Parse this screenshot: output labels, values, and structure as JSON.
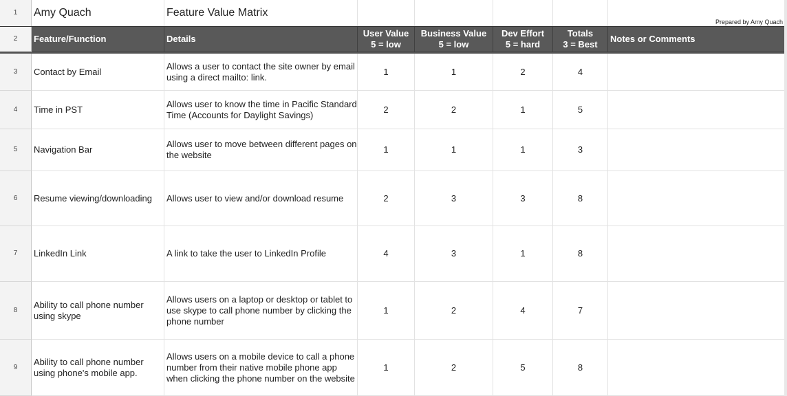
{
  "title_row": {
    "num": "1",
    "name": "Amy Quach",
    "title": "Feature Value Matrix",
    "prepared": "Prepared by Amy Quach"
  },
  "header": {
    "num": "2",
    "feature": "Feature/Function",
    "details": "Details",
    "user_value": [
      "User Value",
      "5 = low"
    ],
    "business_value": [
      "Business Value",
      "5 = low"
    ],
    "dev_effort": [
      "Dev Effort",
      "5 = hard"
    ],
    "totals": [
      "Totals",
      "3 = Best"
    ],
    "notes": "Notes or Comments"
  },
  "rows": [
    {
      "num": "3",
      "feature": "Contact by Email",
      "details": "Allows a user to contact the site owner by email using a direct mailto: link.",
      "user": "1",
      "business": "1",
      "dev": "2",
      "total": "4",
      "notes": ""
    },
    {
      "num": "4",
      "feature": "Time in PST",
      "details": "Allows user to know the time in Pacific Standard Time (Accounts for Daylight Savings)",
      "user": "2",
      "business": "2",
      "dev": "1",
      "total": "5",
      "notes": ""
    },
    {
      "num": "5",
      "feature": "Navigation Bar",
      "details": "Allows user to move between different pages on the website",
      "user": "1",
      "business": "1",
      "dev": "1",
      "total": "3",
      "notes": ""
    },
    {
      "num": "6",
      "feature": "Resume viewing/downloading",
      "details": "Allows user to view and/or download resume",
      "user": "2",
      "business": "3",
      "dev": "3",
      "total": "8",
      "notes": ""
    },
    {
      "num": "7",
      "feature": "LinkedIn Link",
      "details": "A link to take the user to LinkedIn Profile",
      "user": "4",
      "business": "3",
      "dev": "1",
      "total": "8",
      "notes": ""
    },
    {
      "num": "8",
      "feature": "Ability to call phone number using skype",
      "details": "Allows users on a laptop or desktop or tablet to use skype to call phone number by clicking the phone number",
      "user": "1",
      "business": "2",
      "dev": "4",
      "total": "7",
      "notes": ""
    },
    {
      "num": "9",
      "feature": "Ability to call phone number using phone's mobile app.",
      "details": "Allows users on a mobile device to call a phone number from their native mobile phone app when clicking the phone number on the website",
      "user": "1",
      "business": "2",
      "dev": "5",
      "total": "8",
      "notes": ""
    }
  ]
}
